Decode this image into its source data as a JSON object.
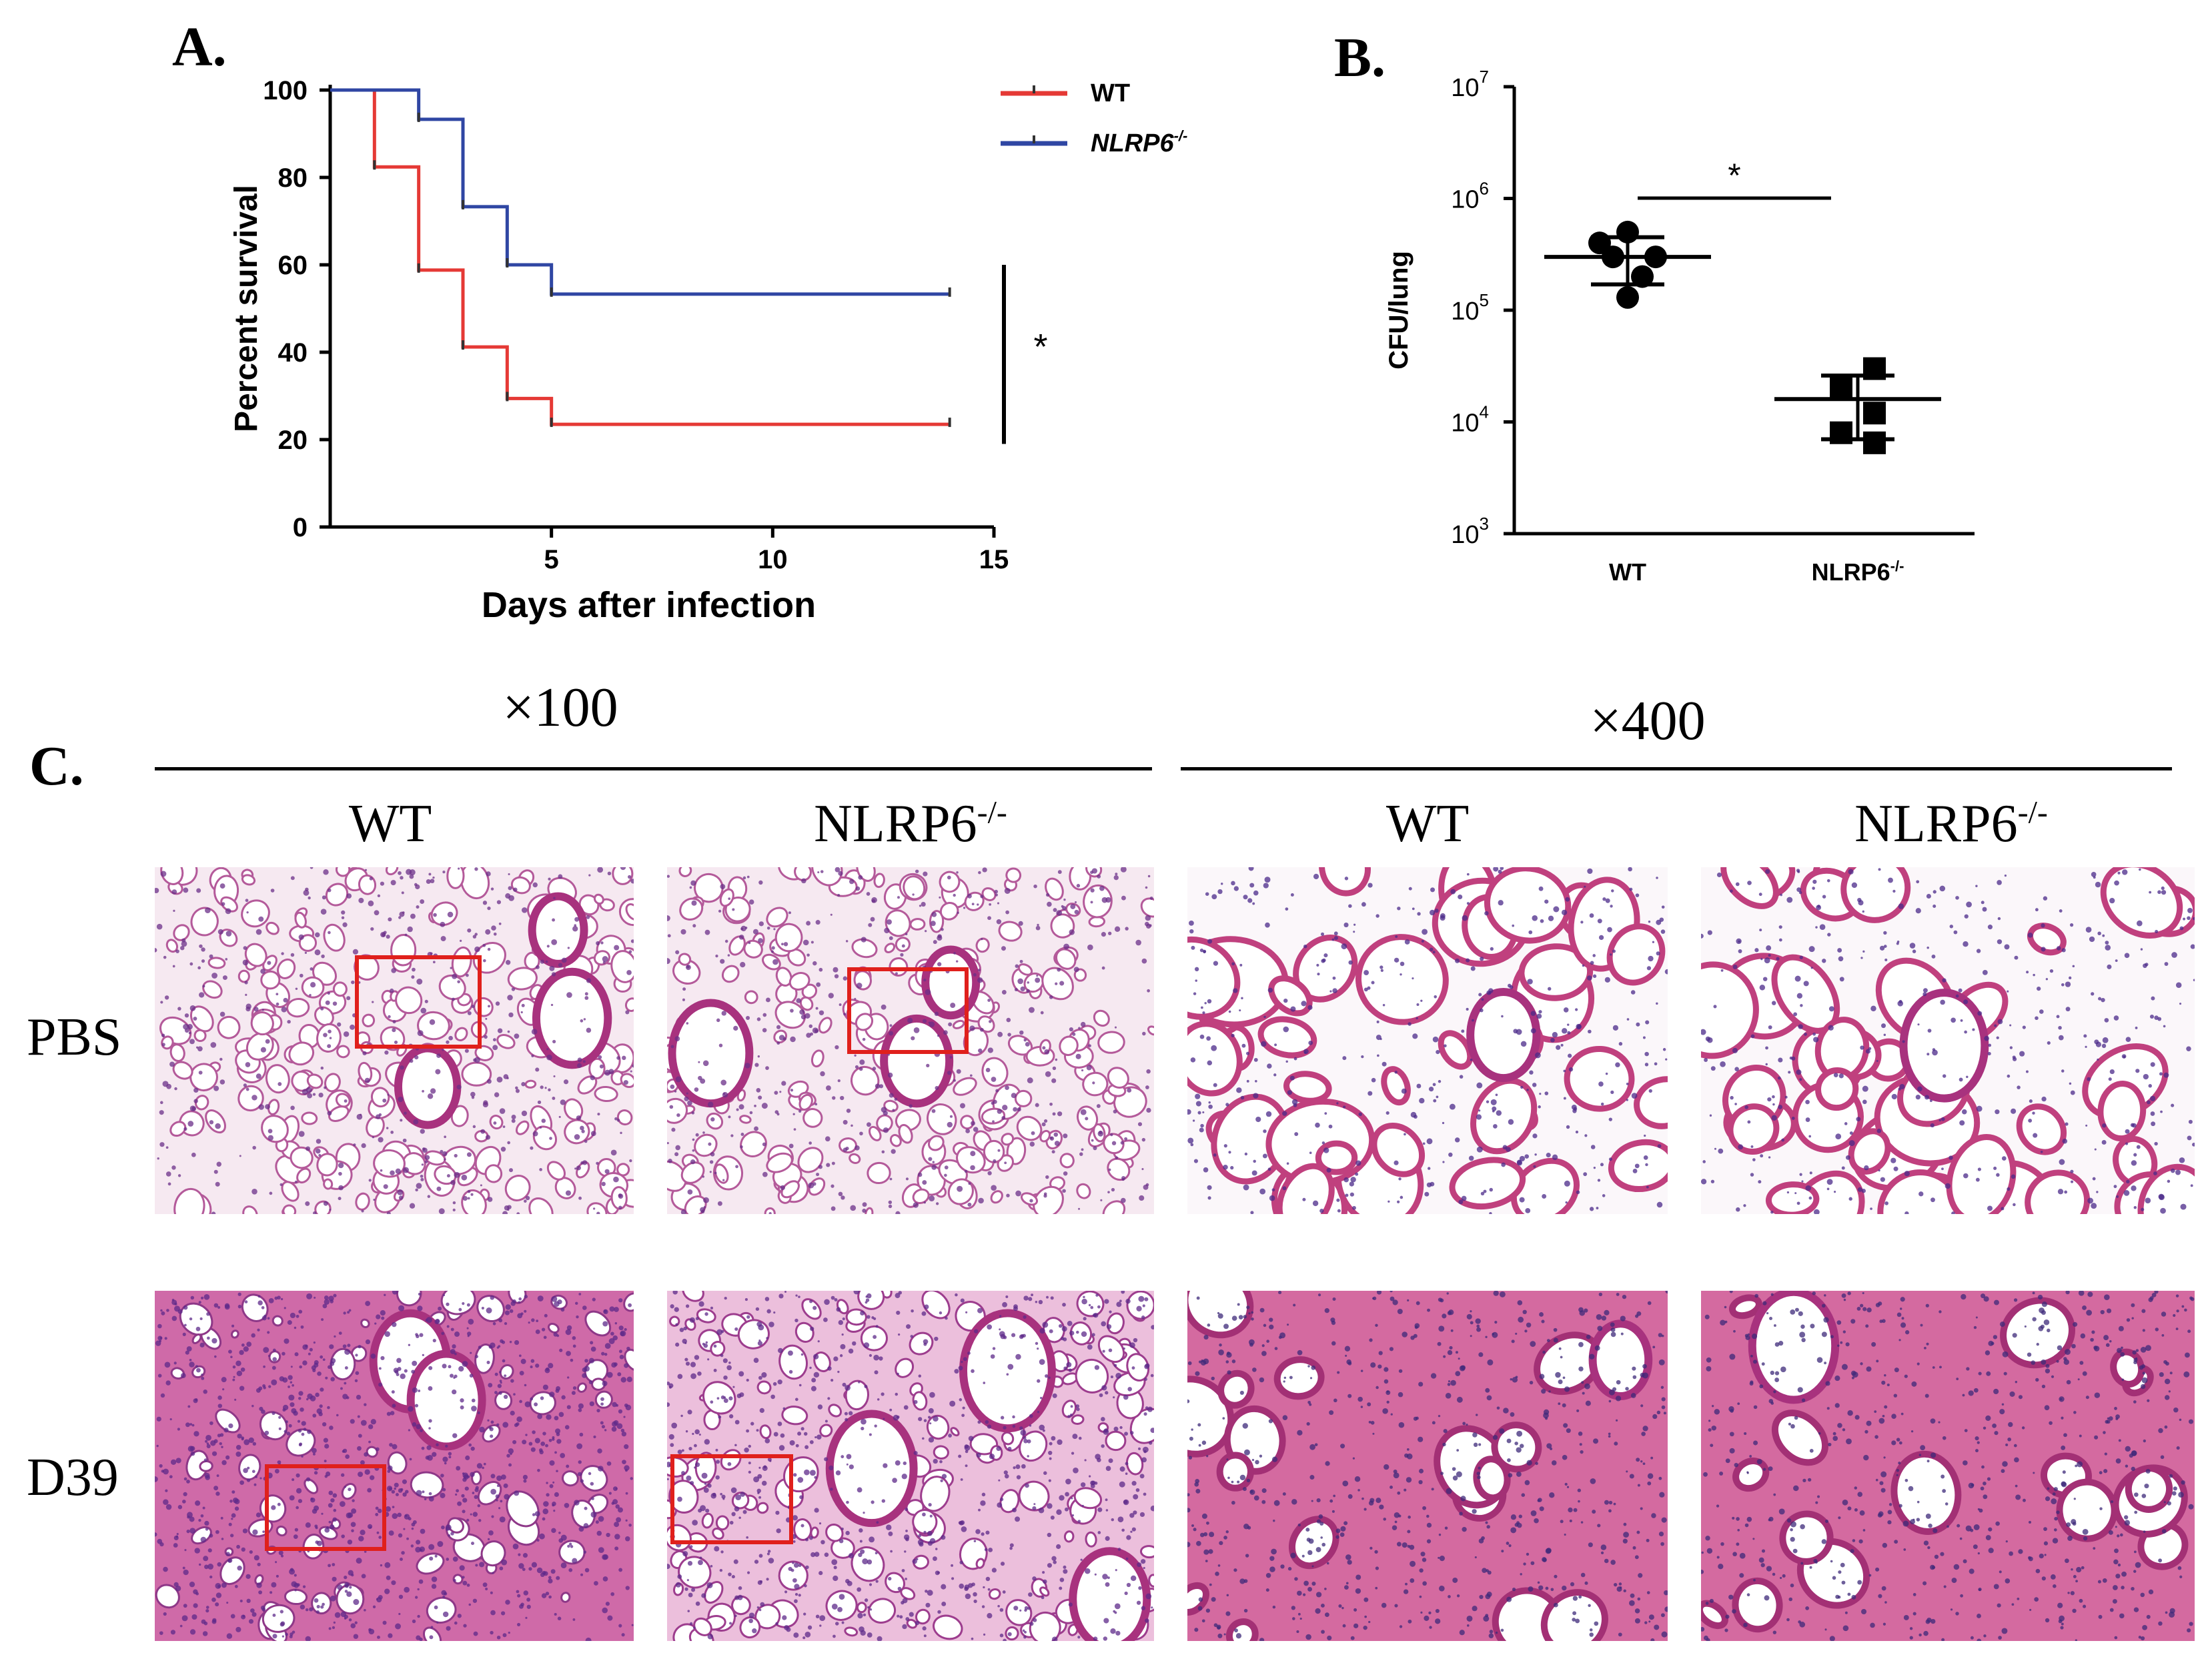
{
  "figure": {
    "panel_a_label": "A.",
    "panel_b_label": "B.",
    "panel_c_label": "C."
  },
  "colors": {
    "wt": "#e53935",
    "ko": "#2f46a3",
    "box": "#e0201c"
  },
  "chart_data": [
    {
      "type": "line",
      "subtype": "kaplan-meier-step",
      "title": "",
      "xlabel": "Days after infection",
      "ylabel": "Percent survival",
      "xlim": [
        0,
        15
      ],
      "ylim": [
        0,
        100
      ],
      "xticks": [
        5,
        10,
        15
      ],
      "yticks": [
        0,
        20,
        40,
        60,
        80,
        100
      ],
      "legend": {
        "placement": "top-right",
        "entries": [
          "WT",
          "NLRP6-/-"
        ]
      },
      "significance": "*",
      "series": [
        {
          "name": "WT",
          "color": "#e53935",
          "steps": [
            [
              0,
              100
            ],
            [
              1,
              82.4
            ],
            [
              2,
              58.8
            ],
            [
              3,
              41.2
            ],
            [
              4,
              29.4
            ],
            [
              5,
              23.5
            ],
            [
              14,
              23.5
            ]
          ]
        },
        {
          "name": "NLRP6-/-",
          "color": "#2f46a3",
          "steps": [
            [
              0,
              100
            ],
            [
              2,
              93.3
            ],
            [
              3,
              73.3
            ],
            [
              4,
              60
            ],
            [
              5,
              53.3
            ],
            [
              14,
              53.3
            ]
          ]
        }
      ]
    },
    {
      "type": "scatter",
      "subtype": "dot-plot-log",
      "title": "",
      "xlabel": "",
      "ylabel": "CFU/lung",
      "yscale": "log",
      "ylim": [
        1000,
        10000000
      ],
      "ytick_exponents": [
        3,
        4,
        5,
        6,
        7
      ],
      "categories": [
        "WT",
        "NLRP6-/-"
      ],
      "significance": "*",
      "series": [
        {
          "name": "WT",
          "values": [
            500000,
            400000,
            300000,
            300000,
            200000,
            130000
          ],
          "mean": 300000,
          "sd_high": 450000,
          "sd_low": 170000
        },
        {
          "name": "NLRP6-/-",
          "values": [
            30000,
            20000,
            12000,
            8000,
            6500
          ],
          "mean": 16000,
          "sd_high": 26000,
          "sd_low": 7000
        }
      ]
    }
  ],
  "panel_c": {
    "mag_left": "×100",
    "mag_right": "×400",
    "col_headers": [
      "WT",
      "NLRP6",
      "WT",
      "NLRP6"
    ],
    "col_sup": "-/-",
    "row_headers": [
      "PBS",
      "D39"
    ]
  }
}
